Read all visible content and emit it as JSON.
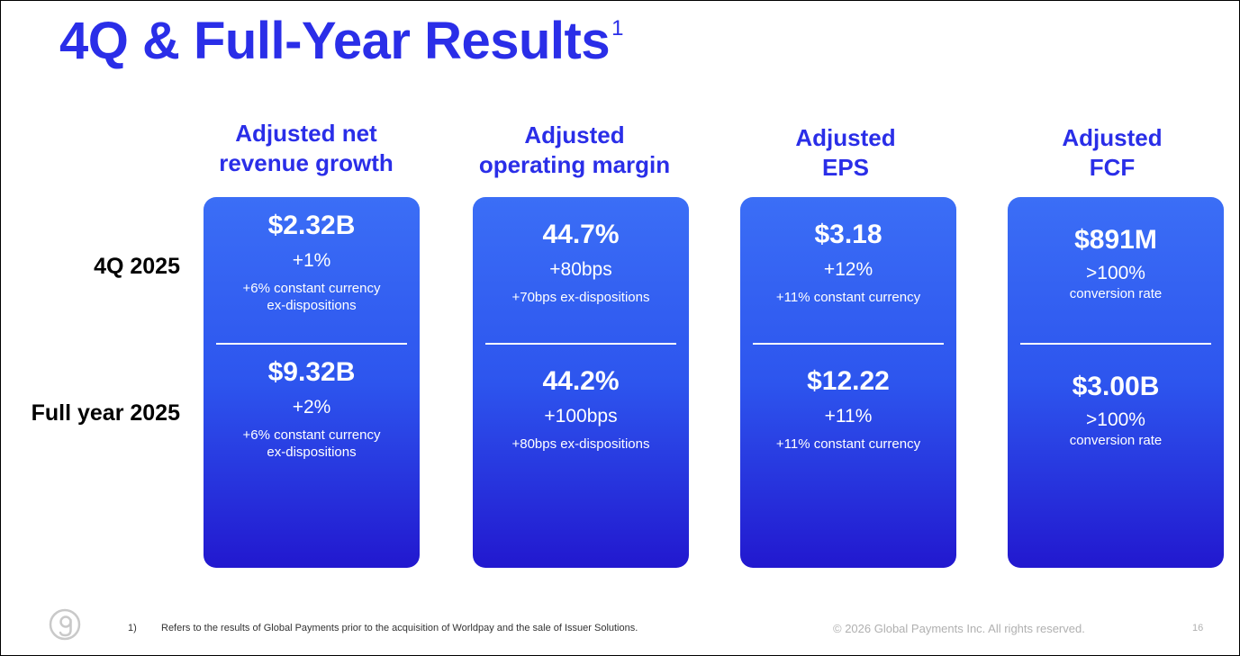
{
  "title": "4Q & Full-Year Results",
  "title_footnote": "1",
  "row_labels": [
    "4Q 2025",
    "Full year 2025"
  ],
  "columns": [
    {
      "header": [
        "Adjusted net",
        "revenue growth"
      ],
      "q4": {
        "value": "$2.32B",
        "change": "+1%",
        "note": [
          "+6% constant currency",
          "ex-dispositions"
        ]
      },
      "fy": {
        "value": "$9.32B",
        "change": "+2%",
        "note": [
          "+6% constant currency",
          "ex-dispositions"
        ]
      }
    },
    {
      "header": [
        "Adjusted",
        "operating margin"
      ],
      "q4": {
        "value": "44.7%",
        "change": "+80bps",
        "note": [
          "+70bps ex-dispositions"
        ]
      },
      "fy": {
        "value": "44.2%",
        "change": "+100bps",
        "note": [
          "+80bps ex-dispositions"
        ]
      }
    },
    {
      "header": [
        "Adjusted",
        "EPS"
      ],
      "q4": {
        "value": "$3.18",
        "change": "+12%",
        "note": [
          "+11% constant currency"
        ]
      },
      "fy": {
        "value": "$12.22",
        "change": "+11%",
        "note": [
          "+11% constant currency"
        ]
      }
    },
    {
      "header": [
        "Adjusted",
        "FCF"
      ],
      "q4": {
        "value": "$891M",
        "change": ">100%",
        "note": [
          "conversion rate"
        ]
      },
      "fy": {
        "value": "$3.00B",
        "change": ">100%",
        "note": [
          "conversion rate"
        ]
      }
    }
  ],
  "footnote": {
    "number": "1)",
    "text": "Refers to the results of Global Payments prior to the acquisition of Worldpay and the sale of Issuer Solutions."
  },
  "copyright": "© 2026 Global Payments Inc. All rights reserved.",
  "page_number": "16",
  "logo_icon": "global-payments-g-logo",
  "colors": {
    "brand_blue": "#2a2ee8",
    "card_top": "#3b6ef6",
    "card_bottom": "#2218cf"
  }
}
